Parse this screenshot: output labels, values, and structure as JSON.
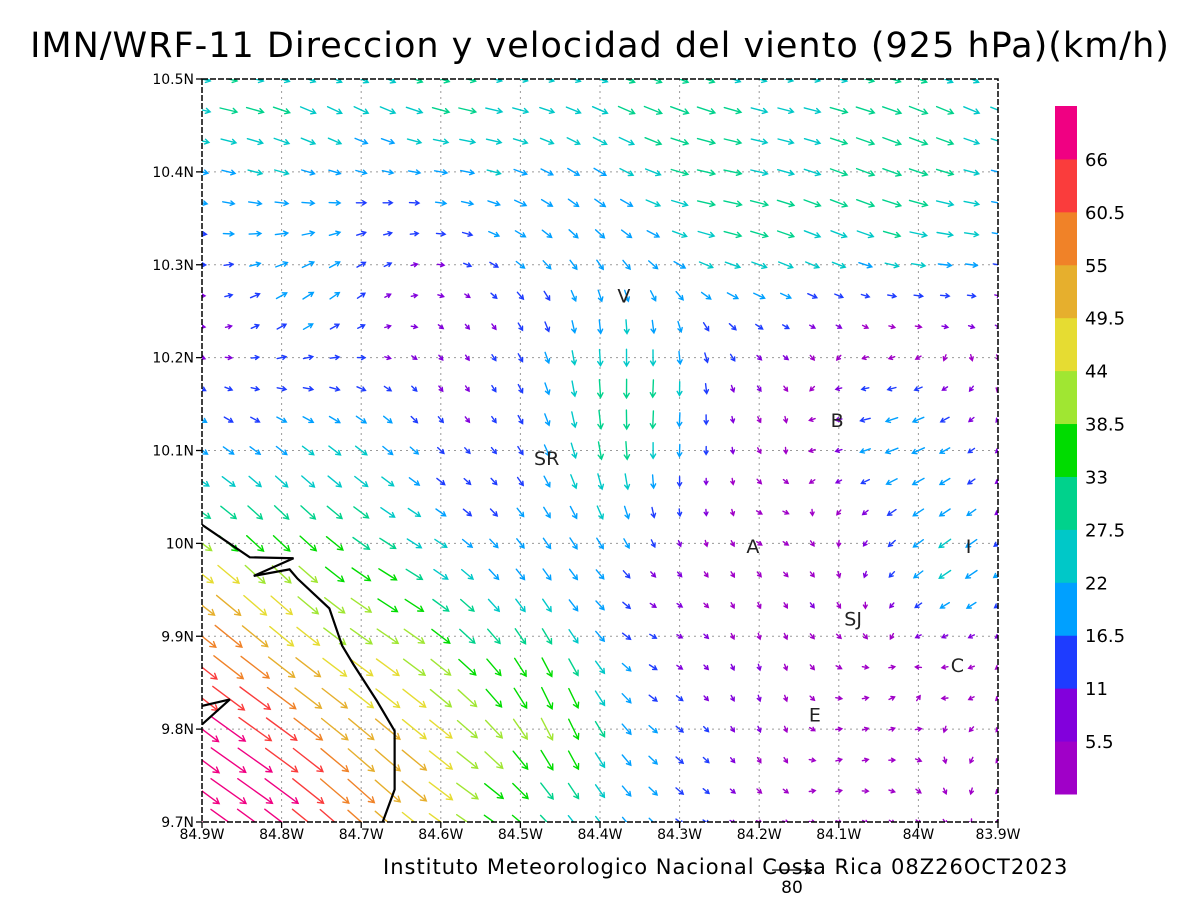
{
  "chart_data": {
    "type": "vector-field",
    "title": "IMN/WRF-11 Direccion y velocidad del viento (925 hPa)(km/h)",
    "footer": "Instituto Meteorologico Nacional Costa Rica 08Z26OCT2023",
    "reference_vector": {
      "label": "80",
      "speed": 80,
      "unit": "km/h"
    },
    "x_range": [
      -84.9,
      -83.9
    ],
    "y_range": [
      9.7,
      10.5
    ],
    "x_ticks": [
      {
        "value": -84.9,
        "label": "84.9W"
      },
      {
        "value": -84.8,
        "label": "84.8W"
      },
      {
        "value": -84.7,
        "label": "84.7W"
      },
      {
        "value": -84.6,
        "label": "84.6W"
      },
      {
        "value": -84.5,
        "label": "84.5W"
      },
      {
        "value": -84.4,
        "label": "84.4W"
      },
      {
        "value": -84.3,
        "label": "84.3W"
      },
      {
        "value": -84.2,
        "label": "84.2W"
      },
      {
        "value": -84.1,
        "label": "84.1W"
      },
      {
        "value": -84.0,
        "label": "84W"
      },
      {
        "value": -83.9,
        "label": "83.9W"
      }
    ],
    "y_ticks": [
      {
        "value": 10.5,
        "label": "10.5N"
      },
      {
        "value": 10.4,
        "label": "10.4N"
      },
      {
        "value": 10.3,
        "label": "10.3N"
      },
      {
        "value": 10.2,
        "label": "10.2N"
      },
      {
        "value": 10.1,
        "label": "10.1N"
      },
      {
        "value": 10.0,
        "label": "10N"
      },
      {
        "value": 9.9,
        "label": "9.9N"
      },
      {
        "value": 9.8,
        "label": "9.8N"
      },
      {
        "value": 9.7,
        "label": "9.7N"
      }
    ],
    "grid": true,
    "colorbar": {
      "position": "right",
      "colors": [
        "#a000c8",
        "#8200dc",
        "#1e3cff",
        "#00a0ff",
        "#00c8c8",
        "#00d28c",
        "#00dc00",
        "#a0e632",
        "#e6dc32",
        "#e6af2d",
        "#f08228",
        "#fa3c3c",
        "#f00082"
      ],
      "labels": [
        "5.5",
        "11",
        "16.5",
        "22",
        "27.5",
        "33",
        "38.5",
        "44",
        "49.5",
        "55",
        "60.5",
        "66"
      ]
    },
    "station_labels": [
      {
        "label": "V",
        "lon": -84.37,
        "lat": 10.268
      },
      {
        "label": "SR",
        "lon": -84.467,
        "lat": 10.093
      },
      {
        "label": "B",
        "lon": -84.102,
        "lat": 10.134
      },
      {
        "label": "A",
        "lon": -84.208,
        "lat": 9.998
      },
      {
        "label": "I",
        "lon": -83.937,
        "lat": 9.998
      },
      {
        "label": "SJ",
        "lon": -84.082,
        "lat": 9.92
      },
      {
        "label": "C",
        "lon": -83.951,
        "lat": 9.87
      },
      {
        "label": "E",
        "lon": -84.13,
        "lat": 9.817
      }
    ],
    "coastline": [
      [
        -84.9,
        10.02
      ],
      [
        -84.84,
        9.985
      ],
      [
        -84.785,
        9.984
      ],
      [
        -84.835,
        9.965
      ],
      [
        -84.79,
        9.972
      ],
      [
        -84.78,
        9.962
      ],
      [
        -84.74,
        9.93
      ],
      [
        -84.724,
        9.89
      ],
      [
        -84.71,
        9.87
      ],
      [
        -84.68,
        9.83
      ],
      [
        -84.658,
        9.798
      ],
      [
        -84.658,
        9.735
      ],
      [
        -84.673,
        9.7
      ]
    ],
    "coastline_2": [
      [
        -84.9,
        9.825
      ],
      [
        -84.865,
        9.832
      ],
      [
        -84.9,
        9.805
      ]
    ],
    "wind_regions": [
      {
        "region": "north band 10.40N–10.50N",
        "direction": "ESE",
        "speed_kmh": "11–38"
      },
      {
        "region": "northwest corner",
        "direction": "ENE to SE",
        "speed_kmh": "11–27"
      },
      {
        "region": "west coast 84.9W–84.6W, 9.7N–10.2N",
        "direction": "SE",
        "speed_kmh": "38–66"
      },
      {
        "region": "central valley 84.5W–84.3W, 10.0N–10.2N",
        "direction": "S",
        "speed_kmh": "16–44"
      },
      {
        "region": "east 84.1W–83.9W, 9.8N–10.0N",
        "direction": "variable/NE",
        "speed_kmh": "3–22"
      }
    ]
  }
}
